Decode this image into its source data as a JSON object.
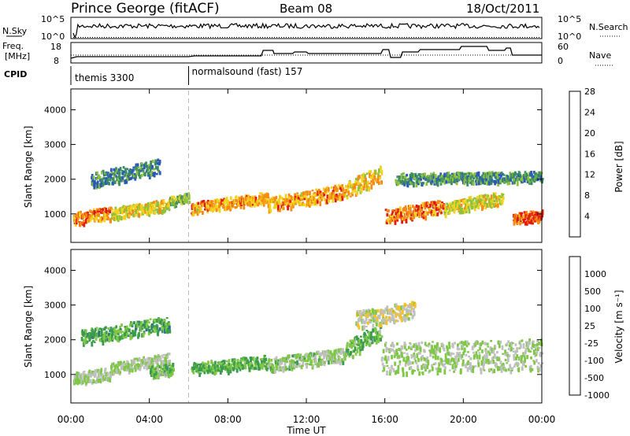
{
  "header": {
    "station": "Prince George (fitACF)",
    "beam": "Beam 08",
    "date": "18/Oct/2011"
  },
  "top_panel": {
    "left_label": "N.Sky",
    "right_label": "N.Search",
    "left_ticks": [
      "10^5",
      "10^0"
    ],
    "right_ticks": [
      "10^5",
      "10^0"
    ]
  },
  "freq_panel": {
    "left_label_line1": "Freq.",
    "left_label_line2": "[MHz]",
    "right_label": "Nave",
    "left_ticks": [
      "18",
      "8"
    ],
    "right_ticks": [
      "60",
      "0"
    ]
  },
  "cpid": {
    "label": "CPID",
    "programs": [
      {
        "name": "themis 3300",
        "start_hour": 0
      },
      {
        "name": "normalsound (fast) 157",
        "start_hour": 6
      }
    ]
  },
  "x_axis": {
    "label": "Time UT",
    "ticks": [
      "00:00",
      "04:00",
      "08:00",
      "12:00",
      "16:00",
      "20:00",
      "00:00"
    ],
    "range_hours": [
      0,
      24
    ]
  },
  "chart_data": [
    {
      "type": "heatmap",
      "title": "",
      "xlabel": "Time UT",
      "ylabel": "Slant Range [km]",
      "xlim_hours": [
        0,
        24
      ],
      "ylim_km": [
        180,
        4600
      ],
      "yticks": [
        "1000",
        "2000",
        "3000",
        "4000"
      ],
      "colorbar": {
        "label": "Power [dB]",
        "ticks": [
          "4",
          "8",
          "12",
          "16",
          "20",
          "24",
          "28"
        ],
        "range": [
          0,
          30
        ],
        "colors": [
          "#0022ee",
          "#2a58b8",
          "#3c8c64",
          "#8ec23c",
          "#f2d21e",
          "#f58a14",
          "#e01a0e"
        ]
      },
      "scatter_bands": [
        {
          "t": [
            0.1,
            2.0
          ],
          "center_km": [
            900,
            1050
          ],
          "width_km": 360,
          "value": 24
        },
        {
          "t": [
            2.0,
            5.0
          ],
          "center_km": [
            1050,
            1300
          ],
          "width_km": 320,
          "value": 18
        },
        {
          "t": [
            5.0,
            6.0
          ],
          "center_km": [
            1400,
            1500
          ],
          "width_km": 260,
          "value": 14
        },
        {
          "t": [
            6.1,
            10.0
          ],
          "center_km": [
            1200,
            1500
          ],
          "width_km": 320,
          "value": 22
        },
        {
          "t": [
            10.0,
            14.0
          ],
          "center_km": [
            1300,
            1700
          ],
          "width_km": 400,
          "value": 22
        },
        {
          "t": [
            14.0,
            15.8
          ],
          "center_km": [
            1700,
            2200
          ],
          "width_km": 500,
          "value": 20
        },
        {
          "t": [
            16.0,
            19.0
          ],
          "center_km": [
            950,
            1250
          ],
          "width_km": 400,
          "value": 24
        },
        {
          "t": [
            19.0,
            22.0
          ],
          "center_km": [
            1200,
            1500
          ],
          "width_km": 380,
          "value": 18
        },
        {
          "t": [
            22.5,
            24.0
          ],
          "center_km": [
            900,
            1000
          ],
          "width_km": 320,
          "value": 26
        },
        {
          "t": [
            1.0,
            4.5
          ],
          "center_km": [
            2000,
            2400
          ],
          "width_km": 420,
          "value": 10
        },
        {
          "t": [
            16.5,
            24.0
          ],
          "center_km": [
            2050,
            2100
          ],
          "width_km": 300,
          "value": 11
        }
      ]
    },
    {
      "type": "heatmap",
      "title": "",
      "xlabel": "Time UT",
      "ylabel": "Slant Range [km]",
      "xlim_hours": [
        0,
        24
      ],
      "ylim_km": [
        180,
        4600
      ],
      "yticks": [
        "1000",
        "2000",
        "3000",
        "4000"
      ],
      "colorbar": {
        "label": "Velocity [m s⁻¹]",
        "ticks": [
          "1000",
          "500",
          "100",
          "25",
          "-25",
          "-100",
          "-500",
          "-1000"
        ],
        "range": [
          -1000,
          1000
        ],
        "colors": [
          "#1c3fb4",
          "#2a6d8c",
          "#3a9a4e",
          "#7ec846",
          "#c0c0c0",
          "#f6c21c",
          "#f58a14",
          "#e01a0e"
        ]
      },
      "scatter_bands": [
        {
          "t": [
            0.1,
            2.0
          ],
          "center_km": [
            900,
            1050
          ],
          "width_km": 360,
          "value": 0
        },
        {
          "t": [
            2.0,
            5.0
          ],
          "center_km": [
            1200,
            1500
          ],
          "width_km": 320,
          "value": 0
        },
        {
          "t": [
            4.0,
            5.2
          ],
          "center_km": [
            1100,
            1200
          ],
          "width_km": 300,
          "value": -200
        },
        {
          "t": [
            6.1,
            10.0
          ],
          "center_km": [
            1200,
            1400
          ],
          "width_km": 360,
          "value": -250
        },
        {
          "t": [
            10.0,
            14.0
          ],
          "center_km": [
            1300,
            1600
          ],
          "width_km": 400,
          "value": -50
        },
        {
          "t": [
            14.0,
            15.8
          ],
          "center_km": [
            1700,
            2300
          ],
          "width_km": 500,
          "value": -200
        },
        {
          "t": [
            15.8,
            24.0
          ],
          "center_km": [
            1500,
            1600
          ],
          "width_km": 900,
          "value": 0
        },
        {
          "t": [
            0.5,
            5.0
          ],
          "center_km": [
            2100,
            2500
          ],
          "width_km": 420,
          "value": -300
        },
        {
          "t": [
            14.5,
            17.5
          ],
          "center_km": [
            2600,
            2900
          ],
          "width_km": 500,
          "value": 150
        }
      ]
    }
  ]
}
